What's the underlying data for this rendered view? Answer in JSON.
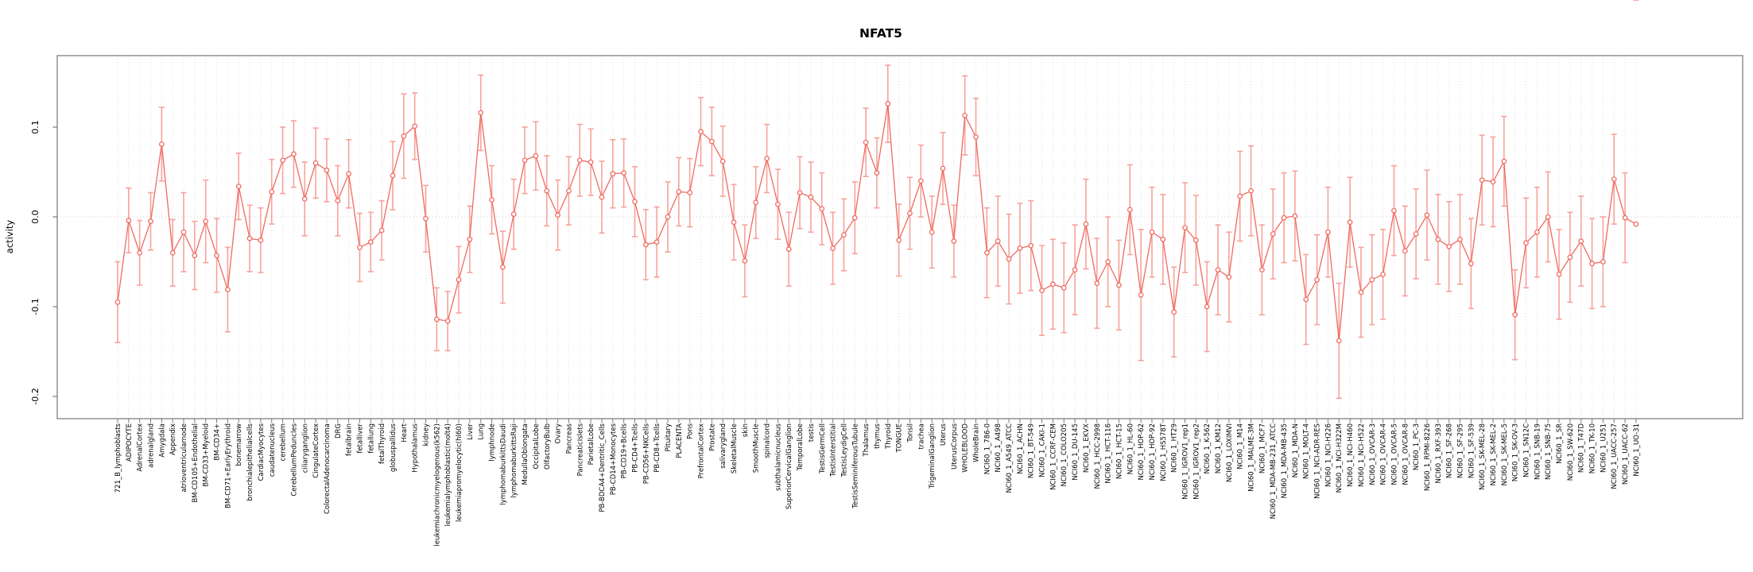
{
  "title": "NFAT5",
  "axes": {
    "ylabel": "activity",
    "ytick_labels": [
      "0.1",
      "0.0",
      "-0.1",
      "-0.2"
    ],
    "ytick_values": [
      0.1,
      0.0,
      -0.1,
      -0.2
    ]
  },
  "colors": {
    "line": "#ee6a60",
    "marker_fill": "#ffffff",
    "error_bar": "#f7a29b",
    "gridline": "#dedede",
    "zero_line": "#cfcfcf",
    "box": "#919191",
    "tick": "#7a7a7a",
    "text": "#000000",
    "background": "#ffffff"
  },
  "chart_data": {
    "type": "line",
    "title": "NFAT5",
    "xlabel": "",
    "ylabel": "activity",
    "ylim": [
      -0.225,
      0.18
    ],
    "yticks": [
      0.1,
      0.0,
      -0.1,
      -0.2
    ],
    "grid": "vertical dotted gridline per category, dotted horizontal line at y=0",
    "legend_position": "none",
    "marker": "open-circle",
    "error_bars": "symmetric, capped",
    "categories": [
      "721_B_lymphoblasts",
      "ADIPOCYTE",
      "AdrenalCortex",
      "adrenalgland",
      "Amygdala",
      "Appendix",
      "atrioventricularnode",
      "BM-CD105+Endothelial",
      "BM-CD33+Myeloid",
      "BM-CD34+",
      "BM-CD71+EarlyErythroid",
      "bonemarrow",
      "bronchialepithelialcells",
      "CardiacMyocytes",
      "caudatenucleus",
      "cerebellum",
      "CerebellumPeduncles",
      "ciliaryganglion",
      "CingulateCortex",
      "ColorectalAdenocarcinoma",
      "DRG",
      "fetalbrain",
      "fetalliver",
      "fetallung",
      "fetalThyroid",
      "globuspallidus",
      "Heart",
      "Hypothalamus",
      "kidney",
      "leukemiachronicmyelogenous(k562)",
      "leukemialymphoblastic(molt4)",
      "leukemiapromyelocytic(hl60)",
      "Liver",
      "Lung",
      "lymphnode",
      "lymphomaburkittsDaudi",
      "lymphomaburkittsRaji",
      "MedullaOblongata",
      "OccipitalLobe",
      "OlfactoryBulb",
      "Ovary",
      "Pancreas",
      "PancreaticIslets",
      "ParietalLobe",
      "PB-BDCA4+Dentritic_Cells",
      "PB-CD14+Monocytes",
      "PB-CD19+Bcells",
      "PB-CD4+Tcells",
      "PB-CD56+NKCells",
      "PB-CD8+Tcells",
      "Pituitary",
      "PLACENTA",
      "Pons",
      "PrefrontalCortex",
      "Prostate",
      "salivarygland",
      "SkeletalMuscle",
      "skin",
      "SmoothMuscle",
      "spinalcord",
      "subthalamicnucleus",
      "SuperiorCervicalGanglion",
      "TemporalLobe",
      "testis",
      "TestisGermCell",
      "TestisInterstitial",
      "TestisLeydigCell",
      "TestisSeminiferousTubule",
      "Thalamus",
      "thymus",
      "Thyroid",
      "TONGUE",
      "Tonsil",
      "trachea",
      "TrigeminalGanglion",
      "Uterus",
      "UterusCorpus",
      "WHOLEBLOOD",
      "WholeBrain",
      "NCI60_1_786-0",
      "NCI60_1_A498",
      "NCI60_1_A549_ATCC",
      "NCI60_1_ACHN",
      "NCI60_1_BT-549",
      "NCI60_1_CAKI-1",
      "NCI60_1_CCRF-CEM",
      "NCI60_1_COLO205",
      "NCI60_1_DU-145",
      "NCI60_1_EKVX",
      "NCI60_1_HCC-2998",
      "NCI60_1_HCT-116",
      "NCI60_1_HCT-15",
      "NCI60_1_HL-60",
      "NCI60_1_HOP-62",
      "NCI60_1_HOP-92",
      "NCI60_1_HS578T",
      "NCI60_1_HT29",
      "NCI60_1_IGROV1_rep1",
      "NCI60_1_IGROV1_rep2",
      "NCI60_1_K-562",
      "NCI60_1_KM12",
      "NCI60_1_LOXIMVI",
      "NCI60_1_M14",
      "NCI60_1_MALME-3M",
      "NCI60_1_MCF7",
      "NCI60_1_MDA-MB-231_ATCC",
      "NCI60_1_MDA-MB-435",
      "NCI60_1_MDA-N",
      "NCI60_1_MOLT-4",
      "NCI60_1_NCI-ADR-RES",
      "NCI60_1_NCI-H226",
      "NCI60_1_NCI-H322M",
      "NCI60_1_NCI-H460",
      "NCI60_1_NCI-H522",
      "NCI60_1_OVCAR-3",
      "NCI60_1_OVCAR-4",
      "NCI60_1_OVCAR-5",
      "NCI60_1_OVCAR-8",
      "NCI60_1_PC-3",
      "NCI60_1_RPMI-8226",
      "NCI60_1_RXF-393",
      "NCI60_1_SF-268",
      "NCI60_1_SF-295",
      "NCI60_1_SF-539",
      "NCI60_1_SK-MEL-28",
      "NCI60_1_SK-MEL-2",
      "NCI60_1_SK-MEL-5",
      "NCI60_1_SK-OV-3",
      "NCI60_1_SN12C",
      "NCI60_1_SNB-19",
      "NCI60_1_SNB-75",
      "NCI60_1_SR",
      "NCI60_1_SW-620",
      "NCI60_1_T47D",
      "NCI60_1_TK-10",
      "NCI60_1_U251",
      "NCI60_1_UACC-257",
      "NCI60_1_UACC-62",
      "NCI60_1_UO-31"
    ],
    "series": [
      {
        "name": "activity",
        "values": [
          -0.095,
          -0.004,
          -0.04,
          -0.005,
          0.081,
          -0.04,
          -0.017,
          -0.043,
          -0.005,
          -0.043,
          -0.081,
          0.034,
          -0.024,
          -0.026,
          0.028,
          0.063,
          0.07,
          0.02,
          0.06,
          0.052,
          0.018,
          0.048,
          -0.034,
          -0.028,
          -0.015,
          0.046,
          0.09,
          0.101,
          -0.002,
          -0.114,
          -0.116,
          -0.07,
          -0.025,
          0.116,
          0.019,
          -0.056,
          0.003,
          0.063,
          0.068,
          0.029,
          0.002,
          0.029,
          0.063,
          0.061,
          0.022,
          0.048,
          0.049,
          0.017,
          -0.031,
          -0.028,
          0.0,
          0.028,
          0.027,
          0.095,
          0.084,
          0.062,
          -0.006,
          -0.049,
          0.016,
          0.065,
          0.014,
          -0.036,
          0.027,
          0.022,
          0.009,
          -0.035,
          -0.02,
          -0.001,
          0.083,
          0.049,
          0.126,
          -0.026,
          0.004,
          0.04,
          -0.017,
          0.054,
          -0.027,
          0.113,
          0.089,
          -0.04,
          -0.027,
          -0.047,
          -0.035,
          -0.032,
          -0.082,
          -0.075,
          -0.079,
          -0.059,
          -0.008,
          -0.074,
          -0.05,
          -0.076,
          0.008,
          -0.087,
          -0.017,
          -0.025,
          -0.106,
          -0.012,
          -0.026,
          -0.1,
          -0.059,
          -0.067,
          0.023,
          0.029,
          -0.059,
          -0.019,
          -0.001,
          0.001,
          -0.092,
          -0.07,
          -0.017,
          -0.138,
          -0.006,
          -0.084,
          -0.07,
          -0.064,
          0.007,
          -0.038,
          -0.019,
          0.002,
          -0.025,
          -0.033,
          -0.025,
          -0.052,
          0.041,
          0.039,
          0.062,
          -0.109,
          -0.029,
          -0.017,
          0.0,
          -0.064,
          -0.045,
          -0.027,
          -0.052,
          -0.05,
          0.042,
          -0.001,
          -0.008
        ],
        "err": [
          0.045,
          0.036,
          0.036,
          0.032,
          0.041,
          0.037,
          0.044,
          0.038,
          0.046,
          0.041,
          0.047,
          0.037,
          0.037,
          0.036,
          0.036,
          0.037,
          0.037,
          0.041,
          0.039,
          0.035,
          0.039,
          0.038,
          0.038,
          0.033,
          0.033,
          0.038,
          0.047,
          0.037,
          0.037,
          0.035,
          0.033,
          0.037,
          0.037,
          0.042,
          0.038,
          0.04,
          0.039,
          0.037,
          0.038,
          0.039,
          0.039,
          0.038,
          0.04,
          0.037,
          0.04,
          0.038,
          0.038,
          0.039,
          0.039,
          0.039,
          0.039,
          0.038,
          0.038,
          0.038,
          0.038,
          0.039,
          0.042,
          0.04,
          0.04,
          0.038,
          0.039,
          0.041,
          0.04,
          0.039,
          0.04,
          0.04,
          0.04,
          0.04,
          0.038,
          0.039,
          0.043,
          0.04,
          0.04,
          0.04,
          0.04,
          0.04,
          0.04,
          0.044,
          0.043,
          0.05,
          0.05,
          0.05,
          0.05,
          0.05,
          0.05,
          0.05,
          0.05,
          0.05,
          0.05,
          0.05,
          0.05,
          0.05,
          0.05,
          0.073,
          0.05,
          0.05,
          0.05,
          0.05,
          0.05,
          0.05,
          0.05,
          0.05,
          0.05,
          0.05,
          0.05,
          0.05,
          0.05,
          0.05,
          0.05,
          0.05,
          0.05,
          0.064,
          0.05,
          0.05,
          0.05,
          0.05,
          0.05,
          0.05,
          0.05,
          0.05,
          0.05,
          0.05,
          0.05,
          0.05,
          0.05,
          0.05,
          0.05,
          0.05,
          0.05,
          0.05,
          0.05,
          0.05,
          0.05,
          0.05,
          0.05,
          0.05,
          0.05,
          0.05
        ]
      }
    ]
  }
}
